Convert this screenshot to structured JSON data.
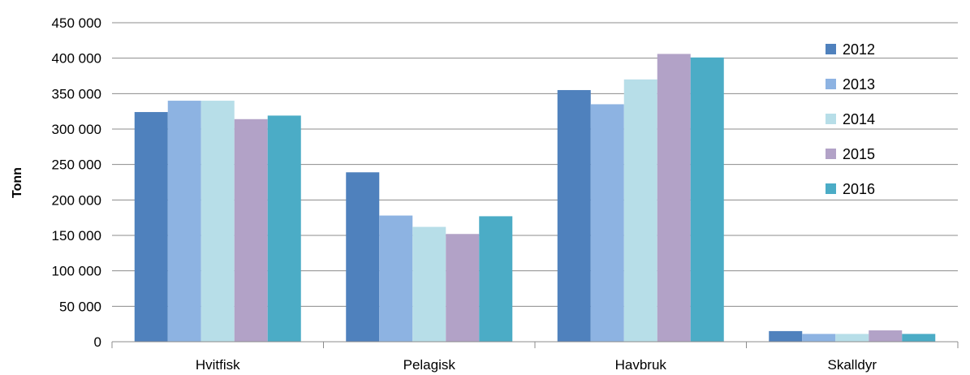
{
  "chart_data": {
    "type": "bar",
    "title": "",
    "xlabel": "",
    "ylabel": "Tonn",
    "categories": [
      "Hvitfisk",
      "Pelagisk",
      "Havbruk",
      "Skalldyr"
    ],
    "series": [
      {
        "name": "2012",
        "color": "#4f81bd",
        "values": [
          324000,
          239000,
          355000,
          15000
        ]
      },
      {
        "name": "2013",
        "color": "#8db3e2",
        "values": [
          340000,
          178000,
          335000,
          11000
        ]
      },
      {
        "name": "2014",
        "color": "#b7dee8",
        "values": [
          340000,
          162000,
          370000,
          11000
        ]
      },
      {
        "name": "2015",
        "color": "#b2a2c7",
        "values": [
          314000,
          152000,
          406000,
          16000
        ]
      },
      {
        "name": "2016",
        "color": "#4bacc6",
        "values": [
          319000,
          177000,
          401000,
          11000
        ]
      }
    ],
    "ylim": [
      0,
      450000
    ],
    "yticks": [
      0,
      50000,
      100000,
      150000,
      200000,
      250000,
      300000,
      350000,
      400000,
      450000
    ],
    "ytick_labels": [
      "0",
      "50 000",
      "100 000",
      "150 000",
      "200 000",
      "250 000",
      "300 000",
      "350 000",
      "400 000",
      "450 000"
    ],
    "grid": true,
    "legend_position": "right"
  }
}
